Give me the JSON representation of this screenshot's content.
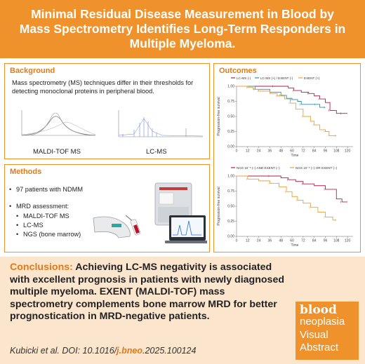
{
  "banner": {
    "title": "Minimal Residual Disease Measurement in Blood by Mass Spectrometry Identifies Long-Term Responders in Multiple Myeloma."
  },
  "background": {
    "heading": "Background",
    "text": "Mass spectrometry (MS) techniques differ in their thresholds for detecting monoclonal proteins in peripheral blood.",
    "left_caption": "MALDI-TOF MS",
    "right_caption": "LC-MS"
  },
  "methods": {
    "heading": "Methods",
    "bullet1": "97 patients with NDMM",
    "bullet2": "MRD assessment:",
    "sub1": "MALDI-TOF MS",
    "sub2": "LC-MS",
    "sub3": "NGS (bone marrow)"
  },
  "outcomes": {
    "heading": "Outcomes"
  },
  "chart_data": [
    {
      "type": "line",
      "ylabel": "Progression-free survival",
      "xlabel": "Time",
      "x_ticks": [
        "0",
        "12",
        "24",
        "36",
        "48",
        "60",
        "72",
        "84",
        "96",
        "108",
        "120"
      ],
      "y_ticks": [
        "0.00",
        "0.25",
        "0.50",
        "0.75",
        "1.00"
      ],
      "ylim": [
        0,
        1
      ],
      "xlim": [
        0,
        126
      ],
      "legend": [
        "LC-MS (-)",
        "LC-MS (+) / EXENT (-)",
        "EXENT (+)"
      ],
      "series": [
        {
          "name": "LC-MS (-)",
          "color": "#b01e4a",
          "x": [
            0,
            40,
            56,
            62,
            70,
            78,
            84,
            90,
            96,
            101,
            108,
            114,
            120
          ],
          "y": [
            1.0,
            1.0,
            0.97,
            0.93,
            0.9,
            0.88,
            0.84,
            0.79,
            0.73,
            0.6,
            0.55,
            0.55,
            0.55
          ]
        },
        {
          "name": "LC-MS (+) / EXENT (-)",
          "color": "#2e8fa6",
          "x": [
            0,
            20,
            36,
            48,
            54,
            60,
            66,
            70,
            78,
            86,
            90,
            96
          ],
          "y": [
            1.0,
            0.95,
            0.9,
            0.85,
            0.8,
            0.78,
            0.75,
            0.7,
            0.7,
            0.7,
            0.65,
            0.65
          ]
        },
        {
          "name": "EXENT (+)",
          "color": "#e8a13b",
          "x": [
            0,
            12,
            18,
            24,
            36,
            44,
            52,
            58,
            64,
            72,
            80,
            84,
            90,
            96,
            100,
            108
          ],
          "y": [
            1.0,
            0.98,
            0.95,
            0.92,
            0.88,
            0.84,
            0.79,
            0.72,
            0.62,
            0.5,
            0.42,
            0.36,
            0.28,
            0.25,
            0.18,
            0.18
          ]
        }
      ]
    },
    {
      "type": "line",
      "ylabel": "Progression-free survival",
      "xlabel": "Time",
      "x_ticks": [
        "0",
        "12",
        "24",
        "36",
        "48",
        "60",
        "72",
        "84",
        "96",
        "108",
        "120"
      ],
      "y_ticks": [
        "0.00",
        "0.25",
        "0.50",
        "0.75",
        "1.00"
      ],
      "ylim": [
        0,
        1
      ],
      "xlim": [
        0,
        126
      ],
      "legend": [
        "NGS 10⁻⁶ (–) AND EXENT (–)",
        "NGS 10⁻⁶ (–) OR EXENT (–)"
      ],
      "series": [
        {
          "name": "NGS 10⁻⁶ (–) AND EXENT (–)",
          "color": "#b01e4a",
          "x": [
            0,
            36,
            48,
            56,
            64,
            72,
            84,
            96,
            108,
            114,
            120
          ],
          "y": [
            1.0,
            1.0,
            0.97,
            0.94,
            0.91,
            0.87,
            0.84,
            0.78,
            0.62,
            0.57,
            0.57
          ]
        },
        {
          "name": "NGS 10⁻⁶ (–) OR EXENT (–)",
          "color": "#e8a13b",
          "x": [
            0,
            12,
            24,
            36,
            46,
            54,
            60,
            66,
            72,
            80,
            88,
            96,
            104,
            108
          ],
          "y": [
            1.0,
            0.95,
            0.92,
            0.88,
            0.82,
            0.74,
            0.66,
            0.6,
            0.55,
            0.48,
            0.4,
            0.32,
            0.27,
            0.27
          ]
        }
      ]
    }
  ],
  "conclusions": {
    "lead": "Conclusions:",
    "text": "Achieving LC-MS negativity is associated with excellent prognosis in patients with newly diagnosed multiple myeloma. EXENT (MALDI-TOF) mass spectrometry complements bone marrow MRD for better prognostication in MRD-negative patients."
  },
  "citation": {
    "prefix": "Kubicki et al. DOI: 10.1016/",
    "journal": "j.bneo",
    "suffix": ".2025.100124"
  },
  "logo": {
    "line1": "blood",
    "line2": "neoplasia",
    "line3": "Visual",
    "line4": "Abstract"
  }
}
